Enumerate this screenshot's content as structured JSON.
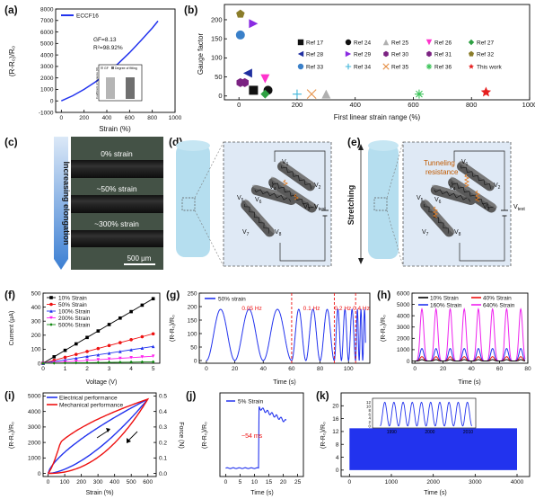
{
  "panels": {
    "a": {
      "label": "(a)",
      "chart_data": {
        "type": "line",
        "legend": "ECCF16",
        "xlabel": "Strain (%)",
        "ylabel": "(R-R₀)/R₀",
        "xlim": [
          -50,
          1000
        ],
        "ylim": [
          -1000,
          8000
        ],
        "xticks": [
          "0",
          "200",
          "400",
          "600",
          "800",
          "1000"
        ],
        "yticks": [
          "-1000",
          "0",
          "1000",
          "2000",
          "3000",
          "4000",
          "5000",
          "6000",
          "7000",
          "8000"
        ],
        "annotation": [
          "GF=8.13",
          "R²=98.92%"
        ],
        "x": [
          0,
          100,
          200,
          300,
          400,
          500,
          600,
          700,
          800,
          850
        ],
        "y": [
          0,
          450,
          1000,
          1650,
          2400,
          3250,
          4200,
          5250,
          6350,
          6950
        ],
        "inset": {
          "ylabel": "Coefficient of Variance (%)",
          "legend": [
            "GF",
            "Degree of fitting"
          ],
          "values": [
            0.9,
            0.9
          ]
        }
      }
    },
    "b": {
      "label": "(b)",
      "chart_data": {
        "type": "scatter",
        "xlabel": "First linear strain range (%)",
        "ylabel": "Gauge factor",
        "xlim": [
          -50,
          1000
        ],
        "ylim": [
          -10,
          240
        ],
        "xticks": [
          "0",
          "200",
          "400",
          "600",
          "800",
          "1000"
        ],
        "yticks": [
          "0",
          "50",
          "100",
          "150",
          "200"
        ],
        "series": [
          {
            "name": "Ref 17",
            "x": 50,
            "y": 15,
            "marker": "square",
            "color": "#111111"
          },
          {
            "name": "Ref 24",
            "x": 100,
            "y": 15,
            "marker": "circle",
            "color": "#111111"
          },
          {
            "name": "Ref 25",
            "x": 300,
            "y": 5,
            "marker": "triangle",
            "color": "#b0b0b0"
          },
          {
            "name": "Ref 26",
            "x": 90,
            "y": 45,
            "marker": "triangle-down",
            "color": "#ff33cc"
          },
          {
            "name": "Ref 27",
            "x": 90,
            "y": 5,
            "marker": "diamond",
            "color": "#2ea043"
          },
          {
            "name": "Ref 28",
            "x": 30,
            "y": 60,
            "marker": "triangle-left",
            "color": "#1f2fa0"
          },
          {
            "name": "Ref 29",
            "x": 50,
            "y": 190,
            "marker": "triangle-right",
            "color": "#8a2be2"
          },
          {
            "name": "Ref 30",
            "x": 5,
            "y": 35,
            "marker": "hexagon",
            "color": "#7b2282"
          },
          {
            "name": "Ref 31",
            "x": 20,
            "y": 35,
            "marker": "hexagon",
            "color": "#7b2282"
          },
          {
            "name": "Ref 32",
            "x": 5,
            "y": 215,
            "marker": "pentagon",
            "color": "#8b7d2a"
          },
          {
            "name": "Ref 33",
            "x": 5,
            "y": 160,
            "marker": "sphere",
            "color": "#3a80c9"
          },
          {
            "name": "Ref 34",
            "x": 200,
            "y": 5,
            "marker": "plus",
            "color": "#3fb5d9"
          },
          {
            "name": "Ref 35",
            "x": 250,
            "y": 5,
            "marker": "x",
            "color": "#e6924a"
          },
          {
            "name": "Ref 36",
            "x": 620,
            "y": 5,
            "marker": "asterisk",
            "color": "#3cc45a"
          },
          {
            "name": "This work",
            "x": 850,
            "y": 10,
            "marker": "star",
            "color": "#e62020"
          }
        ]
      }
    },
    "c": {
      "label": "(c)",
      "arrow_text": "Increasing elongation",
      "strains": [
        "0% strain",
        "~50% strain",
        "~300% strain"
      ],
      "scale": "500 μm"
    },
    "d": {
      "label": "(d)",
      "vtest": "V",
      "vtest_sub": "test",
      "nodes": [
        "1",
        "2",
        "3",
        "4",
        "5",
        "6",
        "7",
        "8"
      ]
    },
    "e": {
      "label": "(e)",
      "side_text": "Stretching",
      "tunneling": [
        "Tunneling",
        "resistance"
      ],
      "vtest": "V",
      "vtest_sub": "test",
      "nodes": [
        "1",
        "2",
        "3",
        "4",
        "5",
        "6",
        "7",
        "8"
      ]
    },
    "f": {
      "label": "(f)",
      "chart_data": {
        "type": "line",
        "xlabel": "Voltage (V)",
        "ylabel": "Current (μA)",
        "xlim": [
          0,
          5.3
        ],
        "ylim": [
          0,
          500
        ],
        "xticks": [
          "0",
          "1",
          "2",
          "3",
          "4",
          "5"
        ],
        "yticks": [
          "0",
          "100",
          "200",
          "300",
          "400",
          "500"
        ],
        "x": [
          0,
          0.5,
          1,
          1.5,
          2,
          2.5,
          3,
          3.5,
          4,
          4.5,
          5
        ],
        "series": [
          {
            "name": "10% Strain",
            "color": "#000000",
            "values": [
              0,
              46,
              92,
              138,
              184,
              230,
              276,
              322,
              368,
              414,
              460
            ]
          },
          {
            "name": "50% Strain",
            "color": "#ee1111",
            "values": [
              0,
              21,
              42,
              63,
              84,
              105,
              126,
              147,
              168,
              189,
              210
            ]
          },
          {
            "name": "100% Strain",
            "color": "#2233ee",
            "values": [
              0,
              12,
              24,
              36,
              48,
              60,
              72,
              84,
              96,
              108,
              120
            ]
          },
          {
            "name": "200% Strain",
            "color": "#ff22ee",
            "values": [
              0,
              5,
              10,
              15,
              20,
              25,
              30,
              35,
              40,
              45,
              50
            ]
          },
          {
            "name": "500% Strain",
            "color": "#118811",
            "values": [
              0,
              1,
              2,
              3,
              4,
              5,
              6,
              7,
              8,
              9,
              10
            ]
          }
        ]
      }
    },
    "g": {
      "label": "(g)",
      "chart_data": {
        "type": "line",
        "legend": "50% strain",
        "xlabel": "Time (s)",
        "ylabel": "(R-R₀)/R₀",
        "xlim": [
          -5,
          115
        ],
        "ylim": [
          -10,
          250
        ],
        "xticks": [
          "0",
          "20",
          "40",
          "60",
          "80",
          "100"
        ],
        "yticks": [
          "0",
          "50",
          "100",
          "150",
          "200",
          "250"
        ],
        "annotations": [
          "0.05 Hz",
          "0.1 Hz",
          "0.2 Hz",
          "0.4 Hz"
        ],
        "dividers": [
          60,
          90,
          105
        ],
        "segments": [
          {
            "start": 0,
            "end": 60,
            "freq": 0.05,
            "amp": 190
          },
          {
            "start": 60,
            "end": 90,
            "freq": 0.1,
            "amp": 190
          },
          {
            "start": 90,
            "end": 105,
            "freq": 0.2,
            "amp": 190
          },
          {
            "start": 105,
            "end": 112,
            "freq": 0.4,
            "amp": 190
          }
        ]
      }
    },
    "h": {
      "label": "(h)",
      "chart_data": {
        "type": "line",
        "xlabel": "Time (s)",
        "ylabel": "(R-R₀)/R₀",
        "xlim": [
          -2,
          80
        ],
        "ylim": [
          -200,
          6000
        ],
        "xticks": [
          "0",
          "20",
          "40",
          "60",
          "80"
        ],
        "yticks": [
          "0",
          "1000",
          "2000",
          "3000",
          "4000",
          "5000",
          "6000"
        ],
        "period": 10,
        "series": [
          {
            "name": "10% Strain",
            "color": "#000000",
            "amp": 120
          },
          {
            "name": "40% Strain",
            "color": "#ee1111",
            "amp": 380
          },
          {
            "name": "160% Strain",
            "color": "#2233ee",
            "amp": 1100
          },
          {
            "name": "640% Strain",
            "color": "#ee22ee",
            "amp": 4600
          }
        ]
      }
    },
    "i": {
      "label": "(i)",
      "chart_data": {
        "type": "line",
        "xlabel": "Strain (%)",
        "ylabel": "(R-R₀)/R₀",
        "ylabel2": "Force (N)",
        "xlim": [
          -30,
          650
        ],
        "ylim": [
          -200,
          5200
        ],
        "ylim2": [
          -0.02,
          0.52
        ],
        "xticks": [
          "0",
          "100",
          "200",
          "300",
          "400",
          "500",
          "600"
        ],
        "yticks": [
          "0",
          "1000",
          "2000",
          "3000",
          "4000",
          "5000"
        ],
        "yticks2": [
          "0.0",
          "0.1",
          "0.2",
          "0.3",
          "0.4",
          "0.5"
        ],
        "series": [
          {
            "name": "Electrical performance",
            "color": "#2233ee"
          },
          {
            "name": "Mechanical performance",
            "color": "#ee1111"
          }
        ]
      }
    },
    "j": {
      "label": "(j)",
      "chart_data": {
        "type": "line",
        "legend": "5% Strain",
        "xlabel": "Time (s)",
        "ylabel": "(R-R₀)/R₀",
        "xlim": [
          -2,
          27
        ],
        "ylim": [
          -2,
          18
        ],
        "xticks": [
          "0",
          "5",
          "10",
          "15",
          "20",
          "25"
        ],
        "annotation": "~54 ms",
        "step_at": 11.5
      }
    },
    "k": {
      "label": "(k)",
      "chart_data": {
        "type": "line",
        "xlabel": "Time (s)",
        "ylabel": "(R-R₀)/R₀",
        "xlim": [
          -200,
          4300
        ],
        "ylim": [
          -2,
          24
        ],
        "xticks": [
          "0",
          "1000",
          "2000",
          "3000",
          "4000"
        ],
        "yticks": [
          "0",
          "4",
          "8",
          "12",
          "16",
          "20"
        ],
        "inset": {
          "xticks": [
            "1990",
            "2000",
            "2010"
          ],
          "yticks": [
            "0",
            "2",
            "4",
            "6",
            "8",
            "10",
            "12"
          ],
          "cycles": 10
        }
      }
    }
  }
}
